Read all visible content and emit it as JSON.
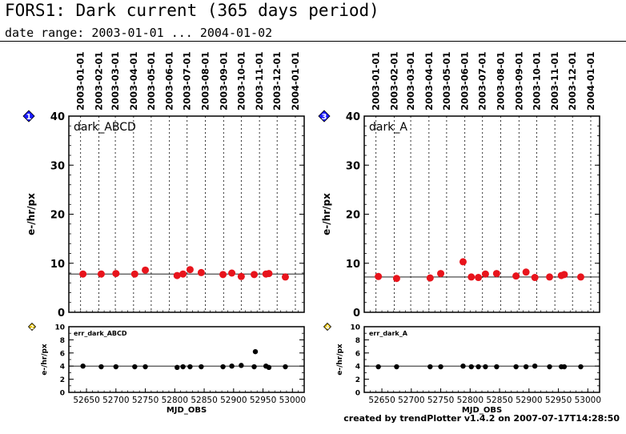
{
  "page": {
    "title": "FORS1: Dark current (365 days period)",
    "subtitle": "date range: 2003-01-01 ... 2004-01-02",
    "footer": "created by trendPlotter v1.4.2 on 2007-07-17T14:28:50"
  },
  "colors": {
    "main_points": "#e8141c",
    "err_points": "#000000",
    "marker": "#1a1aff",
    "marker_small": "#e8c100"
  },
  "chart_data": [
    {
      "type": "scatter",
      "label": "dark_ABCD",
      "marker": "1",
      "ylabel": "e-/hr/px",
      "xlim": [
        52620,
        53020
      ],
      "ylim": [
        0,
        40
      ],
      "yticks": [
        0,
        10,
        20,
        30,
        40
      ],
      "reference_line": 7.8,
      "date_lines": [
        "2003-01-01",
        "2003-02-01",
        "2003-03-01",
        "2003-04-01",
        "2003-05-01",
        "2003-06-01",
        "2003-07-01",
        "2003-08-01",
        "2003-09-01",
        "2003-10-01",
        "2003-11-01",
        "2003-12-01",
        "2004-01-01"
      ],
      "date_mjd": [
        52640,
        52671,
        52699,
        52730,
        52760,
        52791,
        52821,
        52852,
        52883,
        52913,
        52944,
        52974,
        53005
      ],
      "x": [
        52644,
        52675,
        52700,
        52732,
        52750,
        52804,
        52814,
        52826,
        52845,
        52882,
        52897,
        52913,
        52935,
        52955,
        52960,
        52988
      ],
      "y": [
        7.8,
        7.8,
        7.9,
        7.8,
        8.6,
        7.5,
        7.8,
        8.7,
        8.1,
        7.7,
        8.0,
        7.3,
        7.7,
        7.8,
        7.9,
        7.2
      ]
    },
    {
      "type": "scatter",
      "label": "err_dark_ABCD",
      "marker": "2",
      "ylabel": "e-/hr/px",
      "xlabel": "MJD_OBS",
      "xlim": [
        52620,
        53020
      ],
      "ylim": [
        0,
        10
      ],
      "yticks": [
        0,
        2,
        4,
        6,
        8,
        10
      ],
      "xticks": [
        52650,
        52700,
        52750,
        52800,
        52850,
        52900,
        52950,
        53000
      ],
      "reference_line": 4.0,
      "x": [
        52644,
        52675,
        52700,
        52732,
        52750,
        52804,
        52814,
        52826,
        52845,
        52882,
        52897,
        52913,
        52935,
        52937,
        52955,
        52960,
        52988
      ],
      "y": [
        4.0,
        3.9,
        3.9,
        3.9,
        3.9,
        3.8,
        3.9,
        3.9,
        3.9,
        3.9,
        4.0,
        4.1,
        3.9,
        6.2,
        4.0,
        3.8,
        3.9
      ]
    },
    {
      "type": "scatter",
      "label": "dark_A",
      "marker": "3",
      "ylabel": "e-/hr/px",
      "xlim": [
        52620,
        53020
      ],
      "ylim": [
        0,
        40
      ],
      "yticks": [
        0,
        10,
        20,
        30,
        40
      ],
      "reference_line": 7.2,
      "date_lines": [
        "2003-01-01",
        "2003-02-01",
        "2003-03-01",
        "2003-04-01",
        "2003-05-01",
        "2003-06-01",
        "2003-07-01",
        "2003-08-01",
        "2003-09-01",
        "2003-10-01",
        "2003-11-01",
        "2003-12-01",
        "2004-01-01"
      ],
      "date_mjd": [
        52640,
        52671,
        52699,
        52730,
        52760,
        52791,
        52821,
        52852,
        52883,
        52913,
        52944,
        52974,
        53005
      ],
      "x": [
        52644,
        52675,
        52732,
        52750,
        52788,
        52802,
        52814,
        52826,
        52845,
        52878,
        52895,
        52910,
        52935,
        52955,
        52960,
        52988
      ],
      "y": [
        7.3,
        6.9,
        7.0,
        7.9,
        10.3,
        7.2,
        7.1,
        7.8,
        7.9,
        7.4,
        8.2,
        7.1,
        7.2,
        7.5,
        7.7,
        7.2
      ]
    },
    {
      "type": "scatter",
      "label": "err_dark_A",
      "marker": "4",
      "ylabel": "e-/hr/px",
      "xlabel": "MJD_OBS",
      "xlim": [
        52620,
        53020
      ],
      "ylim": [
        0,
        10
      ],
      "yticks": [
        0,
        2,
        4,
        6,
        8,
        10
      ],
      "xticks": [
        52650,
        52700,
        52750,
        52800,
        52850,
        52900,
        52950,
        53000
      ],
      "reference_line": 4.0,
      "x": [
        52644,
        52675,
        52732,
        52750,
        52788,
        52802,
        52814,
        52826,
        52845,
        52878,
        52895,
        52910,
        52935,
        52955,
        52960,
        52988
      ],
      "y": [
        3.9,
        3.9,
        3.9,
        3.9,
        4.0,
        3.9,
        3.9,
        3.9,
        3.9,
        3.9,
        3.9,
        4.0,
        3.9,
        3.9,
        3.9,
        3.9
      ]
    }
  ]
}
